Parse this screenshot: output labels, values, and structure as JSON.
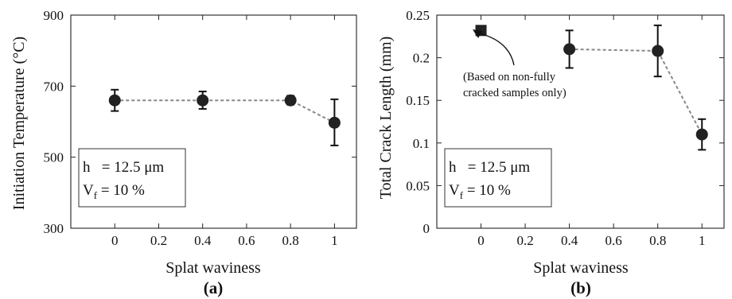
{
  "chart_data": [
    {
      "type": "scatter",
      "panel_label": "(a)",
      "xlabel": "Splat waviness",
      "ylabel": "Initiation Temperature  (°C)",
      "xlim": [
        -0.2,
        1.1
      ],
      "ylim": [
        300,
        900
      ],
      "xticks": [
        "0",
        "0.2",
        "0.4",
        "0.6",
        "0.8",
        "1"
      ],
      "yticks": [
        "300",
        "500",
        "700",
        "900"
      ],
      "grid": false,
      "series": [
        {
          "x": [
            0,
            0.4,
            0.8,
            1
          ],
          "y": [
            660,
            660,
            660,
            597
          ],
          "err_low": [
            630,
            636,
            648,
            533
          ],
          "err_high": [
            690,
            685,
            673,
            663
          ],
          "marker": "circle",
          "line": "dashed"
        }
      ],
      "legend": {
        "line1_main": "h   = 12.5 μm",
        "line2_main": "V",
        "line2_sub": "f",
        "line2_rest": " = 10 %"
      }
    },
    {
      "type": "scatter",
      "panel_label": "(b)",
      "xlabel": "Splat waviness",
      "ylabel": "Total Crack Length (mm)",
      "xlim": [
        -0.2,
        1.1
      ],
      "ylim": [
        0,
        0.25
      ],
      "xticks": [
        "0",
        "0.2",
        "0.4",
        "0.6",
        "0.8",
        "1"
      ],
      "yticks": [
        "0",
        "0.05",
        "0.1",
        "0.15",
        "0.2",
        "0.25"
      ],
      "grid": false,
      "series": [
        {
          "x": [
            0.4,
            0.8,
            1
          ],
          "y": [
            0.21,
            0.208,
            0.11
          ],
          "err_low": [
            0.188,
            0.178,
            0.092
          ],
          "err_high": [
            0.232,
            0.238,
            0.128
          ],
          "marker": "circle",
          "line": "dashed"
        },
        {
          "x": [
            0
          ],
          "y": [
            0.232
          ],
          "marker": "square",
          "line": "none"
        }
      ],
      "annotation": {
        "line1": "(Based on non-fully",
        "line2": "cracked samples only)"
      },
      "legend": {
        "line1_main": "h   = 12.5 μm",
        "line2_main": "V",
        "line2_sub": "f",
        "line2_rest": " = 10 %"
      }
    }
  ]
}
